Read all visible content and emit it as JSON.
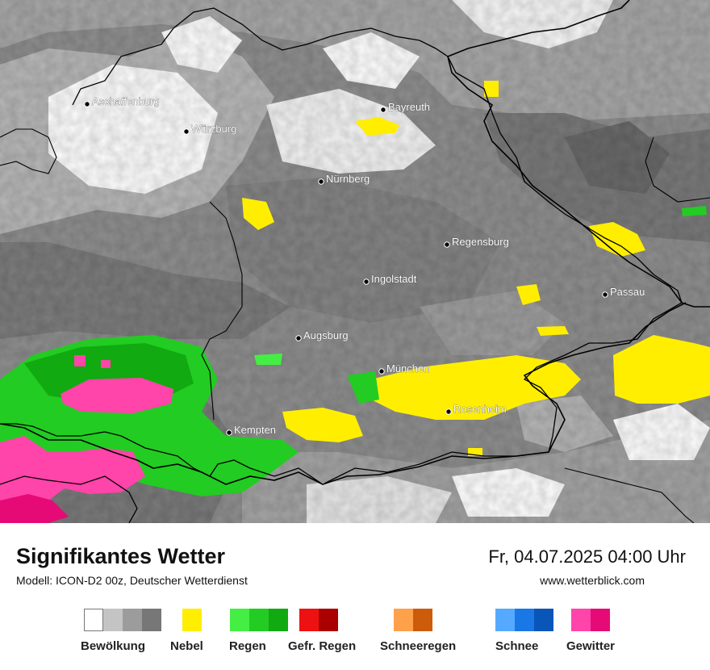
{
  "map": {
    "cities": [
      {
        "name": "Aschaffenburg"
      },
      {
        "name": "Würzburg"
      },
      {
        "name": "Bayreuth"
      },
      {
        "name": "Nürnberg"
      },
      {
        "name": "Regensburg"
      },
      {
        "name": "Ingolstadt"
      },
      {
        "name": "Passau"
      },
      {
        "name": "Augsburg"
      },
      {
        "name": "München"
      },
      {
        "name": "Rosenheim"
      },
      {
        "name": "Kempten"
      }
    ]
  },
  "footer": {
    "title": "Signifikantes Wetter",
    "subtitle": "Modell: ICON-D2 00z, Deutscher Wetterdienst",
    "datetime": "Fr, 04.07.2025 04:00 Uhr",
    "website": "www.wetterblick.com"
  },
  "legend": [
    {
      "label": "Bewölkung",
      "colors": [
        "#ffffff",
        "#c4c4c4",
        "#9c9c9c",
        "#777777"
      ]
    },
    {
      "label": "Nebel",
      "colors": [
        "#ffee00"
      ]
    },
    {
      "label": "Regen",
      "colors": [
        "#44ee44",
        "#22cc22",
        "#11aa11"
      ]
    },
    {
      "label": "Gefr. Regen",
      "colors": [
        "#ee1111",
        "#aa0000"
      ]
    },
    {
      "label": "Schneeregen",
      "colors": [
        "#ffa04a",
        "#cc5c0a"
      ]
    },
    {
      "label": "Schnee",
      "colors": [
        "#55aaff",
        "#1a77e6",
        "#0a55b8"
      ]
    },
    {
      "label": "Gewitter",
      "colors": [
        "#ff44aa",
        "#e60a77"
      ]
    }
  ]
}
